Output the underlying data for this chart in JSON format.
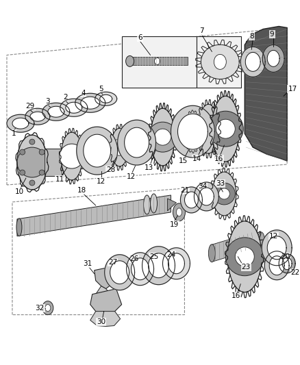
{
  "bg_color": "#ffffff",
  "fig_width": 4.38,
  "fig_height": 5.33,
  "dpi": 100,
  "line_color": "#222222",
  "gray_fill": "#cccccc",
  "med_gray": "#aaaaaa",
  "dark_gray": "#666666"
}
